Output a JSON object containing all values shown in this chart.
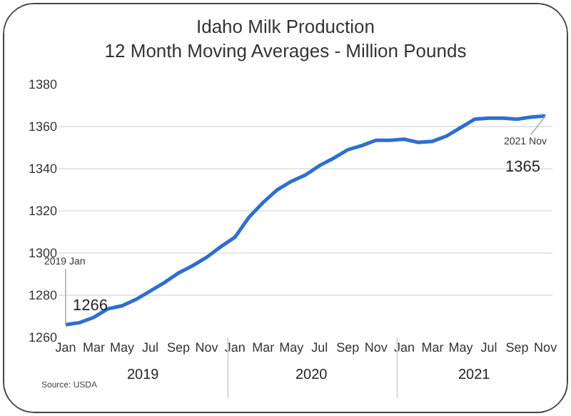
{
  "chart_data": {
    "type": "line",
    "title": "Idaho Milk Production\n12 Month Moving Averages - Million Pounds",
    "categories": [
      "Jan",
      null,
      "Mar",
      null,
      "May",
      null,
      "Jul",
      null,
      "Sep",
      null,
      "Nov",
      null,
      "Jan",
      null,
      "Mar",
      null,
      "May",
      null,
      "Jul",
      null,
      "Sep",
      null,
      "Nov",
      null,
      "Jan",
      null,
      "Mar",
      null,
      "May",
      null,
      "Jul",
      null,
      "Sep",
      null,
      "Nov"
    ],
    "series": [
      {
        "color": "#2e6fce",
        "values": [
          1266,
          1267,
          1269.5,
          1273.5,
          1275,
          1278,
          1282,
          1286,
          1290.5,
          1294,
          1298,
          1303,
          1307.5,
          1317,
          1324,
          1330,
          1334,
          1337,
          1341.5,
          1345,
          1349,
          1351,
          1353.5,
          1353.5,
          1354,
          1352.5,
          1353,
          1355.5,
          1359.5,
          1363.5,
          1364,
          1364,
          1363.5,
          1364.5,
          1365
        ],
        "value_labels": [
          "1266",
          null,
          null,
          null,
          null,
          null,
          null,
          null,
          null,
          null,
          null,
          null,
          null,
          null,
          null,
          null,
          null,
          null,
          null,
          null,
          null,
          null,
          null,
          null,
          null,
          null,
          null,
          null,
          null,
          null,
          null,
          null,
          null,
          null,
          "1365"
        ]
      }
    ],
    "ylim": [
      1260,
      1380
    ],
    "yticks": [
      1260,
      1280,
      1300,
      1320,
      1340,
      1360,
      1380
    ],
    "grid": "y",
    "marker": "none",
    "line_style": "solid",
    "annotations": [
      {
        "text": "2019 Jan",
        "y": 1266
      },
      {
        "text": "2021 Nov",
        "y": 1365
      },
      "2019",
      "2020",
      "2021",
      "Source: USDA"
    ]
  }
}
